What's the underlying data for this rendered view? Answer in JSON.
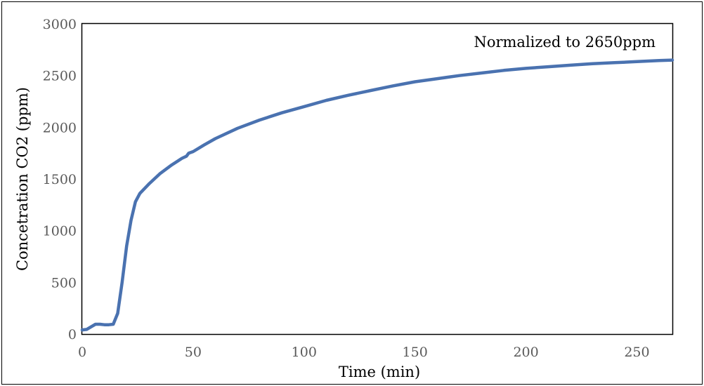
{
  "chart_data": {
    "type": "line",
    "title": "",
    "xlabel": "Time (min)",
    "ylabel": "Concetration CO2 (ppm)",
    "annotation": "Normalized to 2650ppm",
    "xlim": [
      0,
      266
    ],
    "ylim": [
      0,
      3000
    ],
    "x_ticks": [
      0,
      50,
      100,
      150,
      200,
      250
    ],
    "y_ticks": [
      0,
      500,
      1000,
      1500,
      2000,
      2500,
      3000
    ],
    "grid": false,
    "legend": "none",
    "series": [
      {
        "color": "#4a72b0",
        "x": [
          0,
          2,
          4,
          6,
          8,
          10,
          12,
          14,
          16,
          18,
          20,
          22,
          24,
          26,
          30,
          35,
          40,
          45,
          47,
          48,
          50,
          55,
          60,
          70,
          80,
          90,
          100,
          110,
          120,
          130,
          140,
          150,
          160,
          170,
          180,
          190,
          200,
          210,
          220,
          230,
          240,
          250,
          260,
          266
        ],
        "y": [
          40,
          45,
          70,
          95,
          95,
          90,
          90,
          95,
          200,
          500,
          850,
          1100,
          1280,
          1360,
          1450,
          1550,
          1630,
          1700,
          1720,
          1750,
          1765,
          1830,
          1890,
          1990,
          2070,
          2140,
          2200,
          2260,
          2310,
          2355,
          2400,
          2440,
          2470,
          2500,
          2525,
          2550,
          2570,
          2585,
          2600,
          2615,
          2625,
          2635,
          2645,
          2650
        ]
      }
    ]
  }
}
